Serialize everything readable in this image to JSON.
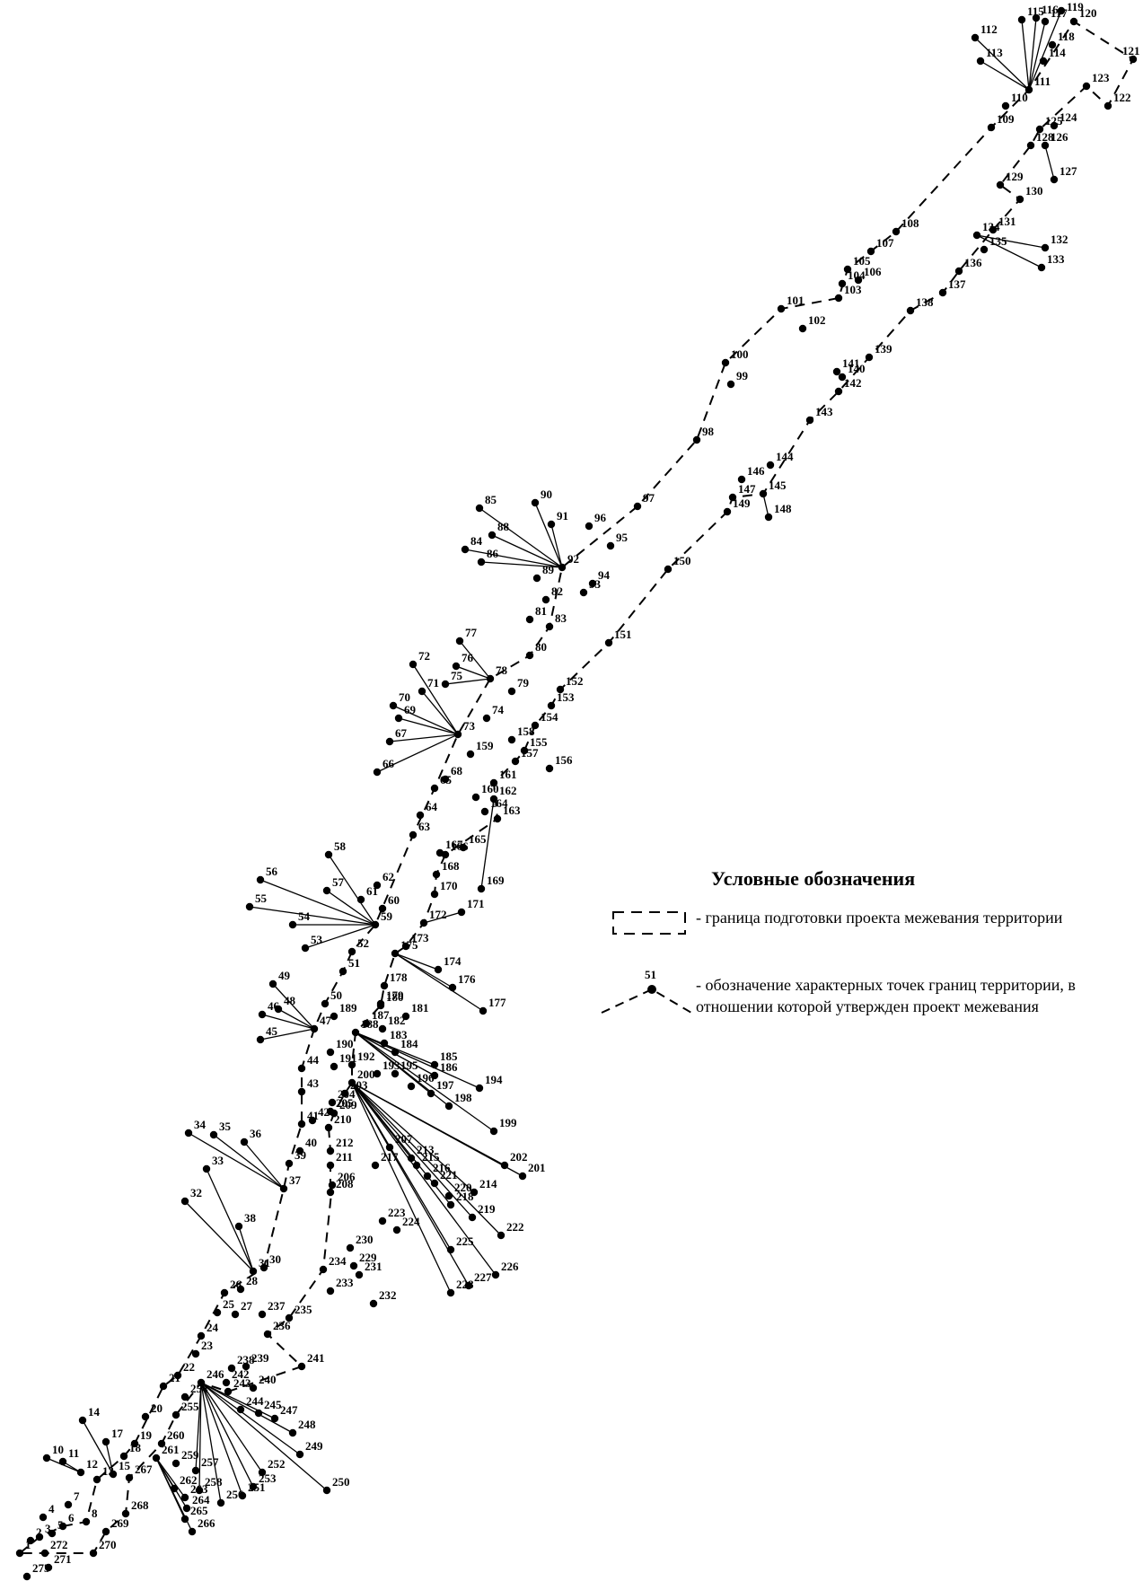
{
  "legend": {
    "title": "Условные обозначения",
    "boundary_text": "- граница подготовки проекта межевания территории",
    "points_text": "- обозначение характерных точек границ территории, в отношении которой утвержден проект межевания",
    "sample_point_label": "51"
  },
  "points": [
    "1",
    "2",
    "3",
    "4",
    "5",
    "6",
    "7",
    "8",
    "10",
    "11",
    "12",
    "13",
    "14",
    "15",
    "17",
    "18",
    "19",
    "20",
    "21",
    "22",
    "23",
    "24",
    "25",
    "26",
    "27",
    "28",
    "30",
    "31",
    "32",
    "33",
    "34",
    "35",
    "36",
    "37",
    "38",
    "39",
    "40",
    "41",
    "42",
    "43",
    "44",
    "45",
    "46",
    "47",
    "48",
    "49",
    "50",
    "51",
    "52",
    "53",
    "54",
    "55",
    "56",
    "57",
    "58",
    "59",
    "60",
    "61",
    "62",
    "63",
    "64",
    "65",
    "66",
    "67",
    "68",
    "69",
    "70",
    "71",
    "72",
    "73",
    "74",
    "75",
    "76",
    "77",
    "78",
    "79",
    "80",
    "81",
    "82",
    "83",
    "84",
    "85",
    "86",
    "88",
    "89",
    "90",
    "91",
    "92",
    "93",
    "94",
    "95",
    "96",
    "97",
    "98",
    "99",
    "100",
    "101",
    "102",
    "103",
    "104",
    "105",
    "106",
    "107",
    "108",
    "109",
    "110",
    "111",
    "112",
    "113",
    "114",
    "115",
    "116",
    "117",
    "118",
    "119",
    "120",
    "121",
    "122",
    "123",
    "124",
    "125",
    "126",
    "127",
    "128",
    "129",
    "130",
    "131",
    "132",
    "133",
    "134",
    "135",
    "136",
    "137",
    "138",
    "139",
    "140",
    "141",
    "142",
    "143",
    "144",
    "145",
    "146",
    "147",
    "148",
    "149",
    "150",
    "151",
    "152",
    "153",
    "154",
    "155",
    "156",
    "157",
    "158",
    "159",
    "160",
    "161",
    "162",
    "163",
    "164",
    "165",
    "166",
    "167",
    "168",
    "169",
    "170",
    "171",
    "172",
    "173",
    "174",
    "175",
    "176",
    "177",
    "178",
    "179",
    "180",
    "181",
    "182",
    "183",
    "184",
    "185",
    "186",
    "187",
    "188",
    "189",
    "190",
    "191",
    "192",
    "193",
    "194",
    "195",
    "196",
    "197",
    "198",
    "199",
    "200",
    "201",
    "202",
    "203",
    "204",
    "205",
    "206",
    "207",
    "208",
    "209",
    "210",
    "211",
    "212",
    "213",
    "214",
    "215",
    "216",
    "217",
    "218",
    "219",
    "220",
    "221",
    "222",
    "223",
    "224",
    "225",
    "226",
    "227",
    "228",
    "229",
    "230",
    "231",
    "232",
    "233",
    "234",
    "235",
    "236",
    "237",
    "238",
    "239",
    "240",
    "241",
    "242",
    "243",
    "244",
    "245",
    "246",
    "247",
    "248",
    "249",
    "250",
    "251",
    "252",
    "253",
    "254",
    "255",
    "256",
    "257",
    "258",
    "259",
    "260",
    "261",
    "262",
    "263",
    "264",
    "265",
    "266",
    "267",
    "268",
    "269",
    "270",
    "271",
    "272",
    "273"
  ]
}
